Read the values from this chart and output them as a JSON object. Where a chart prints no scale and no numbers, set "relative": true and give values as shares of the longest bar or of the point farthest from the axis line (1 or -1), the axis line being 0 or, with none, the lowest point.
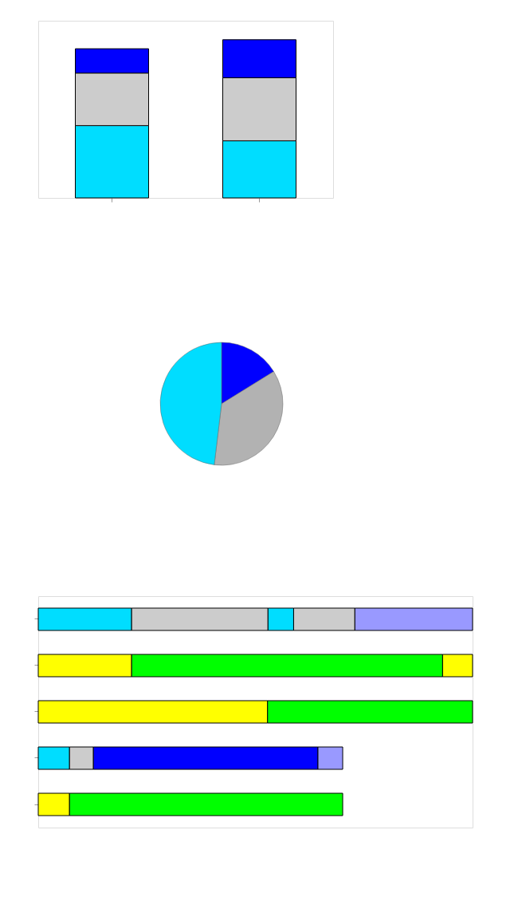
{
  "chart_data": [
    {
      "type": "bar",
      "stacked": true,
      "relative": true,
      "categories": [
        null,
        null
      ],
      "series": [
        {
          "color": "#00ddff",
          "values": [
            0.457,
            0.361
          ]
        },
        {
          "color": "#cccccc",
          "values": [
            0.332,
            0.399
          ]
        },
        {
          "color": "#0000ff",
          "values": [
            0.154,
            0.24
          ]
        }
      ]
    },
    {
      "type": "pie",
      "categories": [
        null,
        null,
        null
      ],
      "values": [
        16.2,
        35.7,
        48.1
      ],
      "colors": [
        "#0000ff",
        "#b2b2b2",
        "#00ddff"
      ]
    },
    {
      "type": "bar",
      "stacked": true,
      "relative": true,
      "orientation": "horizontal",
      "categories": [
        null,
        null,
        null,
        null,
        null
      ],
      "series": [
        {
          "colors": [
            "#00ddff",
            "#ffff00",
            "#ffff00",
            "#00ddff",
            "#ffff00"
          ],
          "values": [
            0.215,
            0.215,
            0.528,
            0.072,
            0.072
          ]
        },
        {
          "colors": [
            "#cccccc",
            "#00ff00",
            "#00ff00",
            "#cccccc",
            "#00ff00"
          ],
          "values": [
            0.314,
            0.716,
            0.472,
            0.055,
            0.629
          ]
        },
        {
          "colors": [
            "#00ddff",
            "#ffff00",
            null,
            "#0000ff",
            null
          ],
          "values": [
            0.059,
            0.069,
            null,
            0.517,
            null
          ]
        },
        {
          "colors": [
            "#cccccc",
            null,
            null,
            "#9999ff",
            null
          ],
          "values": [
            0.141,
            null,
            null,
            0.057,
            null
          ]
        },
        {
          "colors": [
            "#9999ff",
            null,
            null,
            null,
            null
          ],
          "values": [
            0.271,
            null,
            null,
            null,
            null
          ]
        }
      ]
    }
  ]
}
